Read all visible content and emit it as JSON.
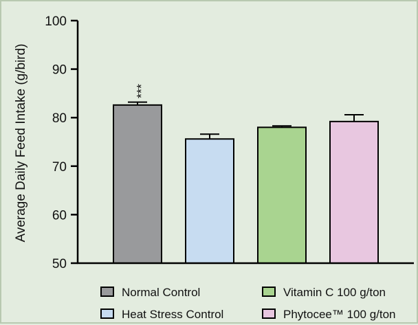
{
  "chart_data": {
    "type": "bar",
    "ylabel": "Average Daily Feed Intake (g/bird)",
    "xlabel": "",
    "ylim": [
      50,
      100
    ],
    "yticks": [
      50,
      60,
      70,
      80,
      90,
      100
    ],
    "grid": false,
    "legend_position": "bottom",
    "categories": [
      "Normal Control",
      "Heat Stress Control",
      "Vitamin C 100 g/ton",
      "Phytocee™ 100 g/ton"
    ],
    "values": [
      82.6,
      75.6,
      78.0,
      79.2
    ],
    "errors": [
      0.6,
      1.0,
      0.3,
      1.4
    ],
    "colors": [
      "#999a9c",
      "#c7dcf1",
      "#a9d490",
      "#e8c7e0"
    ],
    "annotations": [
      {
        "category": "Normal Control",
        "text": "***"
      }
    ]
  }
}
